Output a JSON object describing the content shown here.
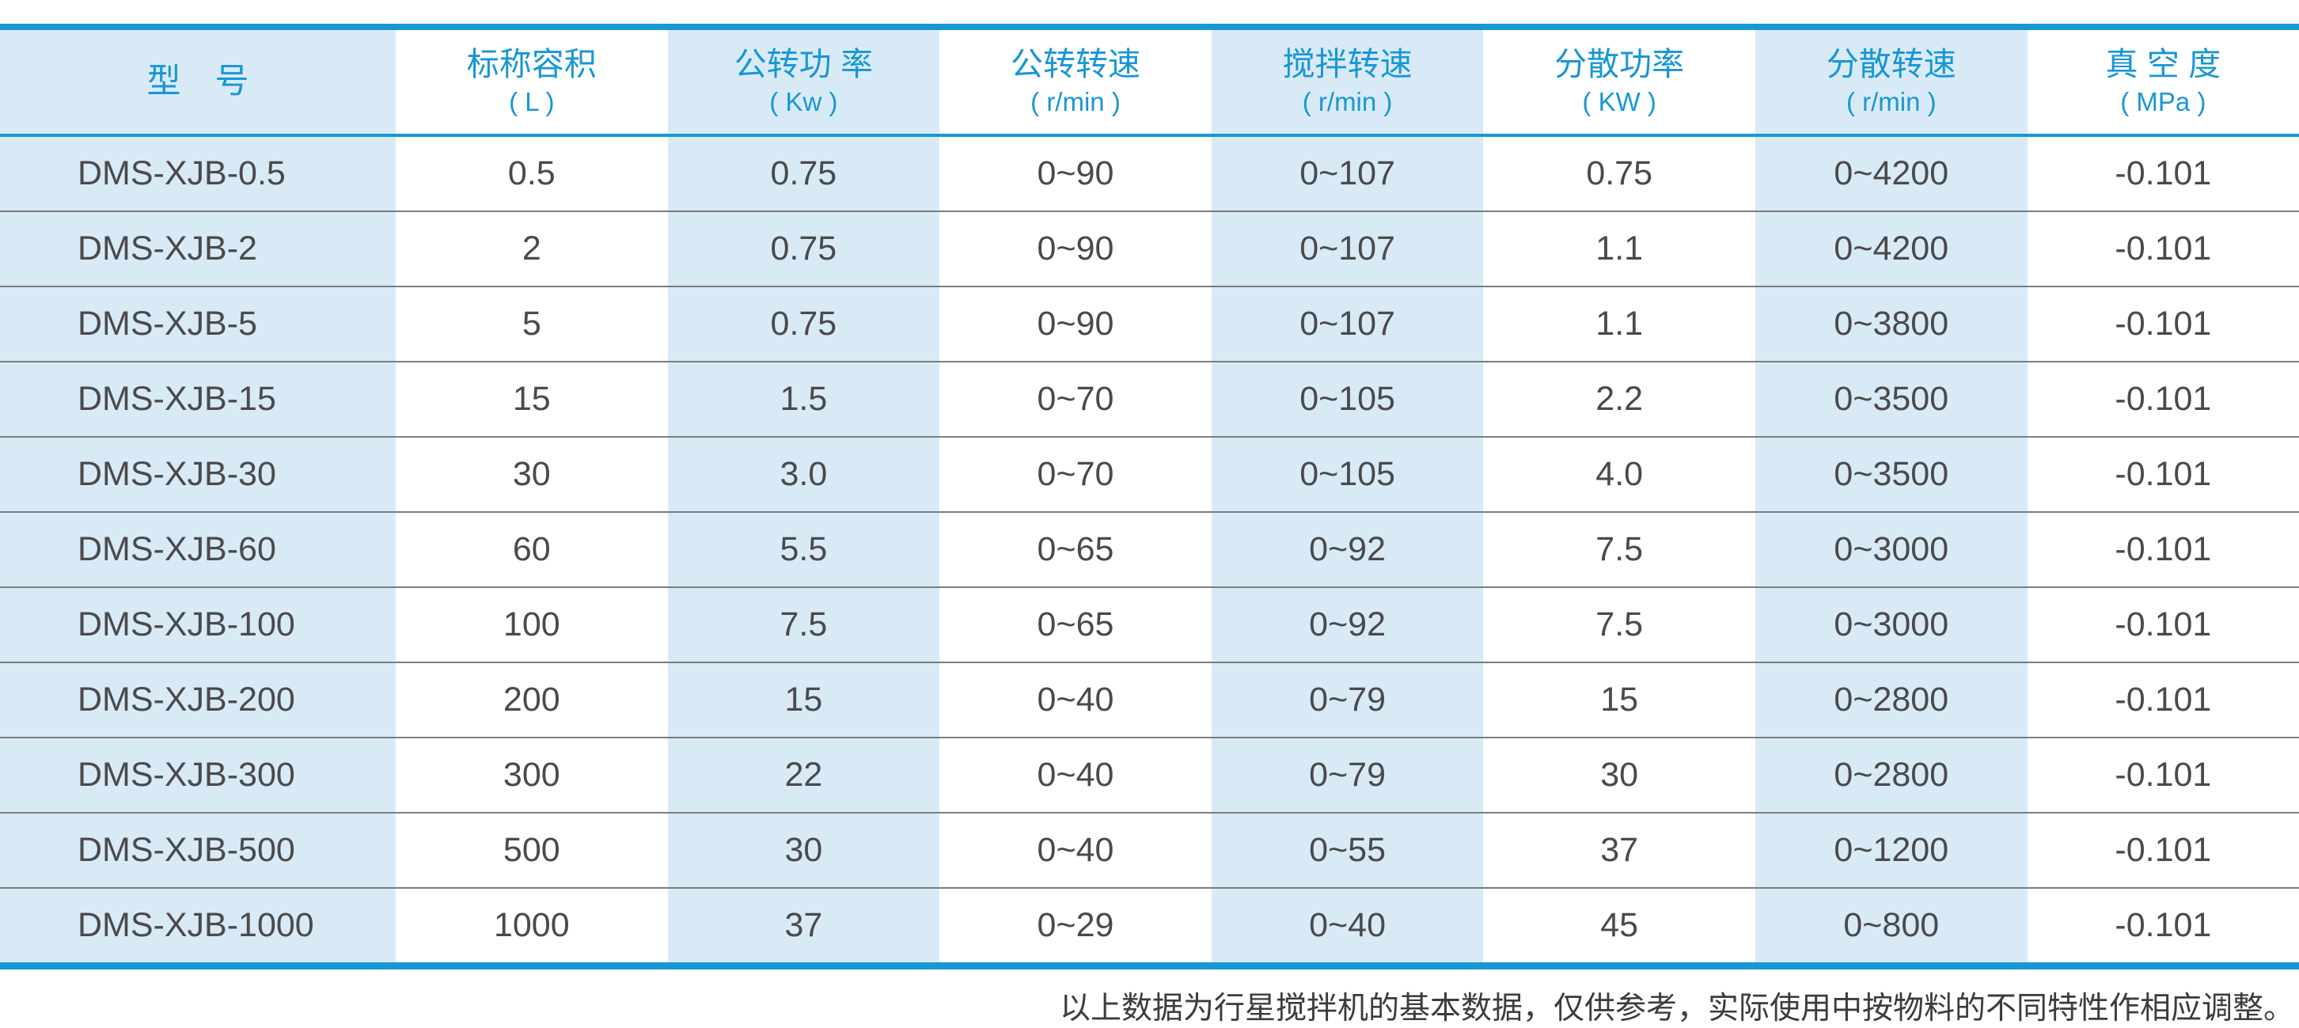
{
  "colors": {
    "accent": "#1897d5",
    "light_blue": "#d9eaf7",
    "body_text": "#4a4a4c",
    "row_separator": "#7d7d7d"
  },
  "table": {
    "columns": [
      {
        "label": "型　号",
        "unit": ""
      },
      {
        "label": "标称容积",
        "unit": "( L )"
      },
      {
        "label": "公转功 率",
        "unit": "( Kw )"
      },
      {
        "label": "公转转速",
        "unit": "( r/min )"
      },
      {
        "label": "搅拌转速",
        "unit": "( r/min )"
      },
      {
        "label": "分散功率",
        "unit": "( KW )"
      },
      {
        "label": "分散转速",
        "unit": "( r/min )"
      },
      {
        "label": "真 空 度",
        "unit": "( MPa )"
      }
    ],
    "rows": [
      [
        "DMS-XJB-0.5",
        "0.5",
        "0.75",
        "0~90",
        "0~107",
        "0.75",
        "0~4200",
        "-0.101"
      ],
      [
        "DMS-XJB-2",
        "2",
        "0.75",
        "0~90",
        "0~107",
        "1.1",
        "0~4200",
        "-0.101"
      ],
      [
        "DMS-XJB-5",
        "5",
        "0.75",
        "0~90",
        "0~107",
        "1.1",
        "0~3800",
        "-0.101"
      ],
      [
        "DMS-XJB-15",
        "15",
        "1.5",
        "0~70",
        "0~105",
        "2.2",
        "0~3500",
        "-0.101"
      ],
      [
        "DMS-XJB-30",
        "30",
        "3.0",
        "0~70",
        "0~105",
        "4.0",
        "0~3500",
        "-0.101"
      ],
      [
        "DMS-XJB-60",
        "60",
        "5.5",
        "0~65",
        "0~92",
        "7.5",
        "0~3000",
        "-0.101"
      ],
      [
        "DMS-XJB-100",
        "100",
        "7.5",
        "0~65",
        "0~92",
        "7.5",
        "0~3000",
        "-0.101"
      ],
      [
        "DMS-XJB-200",
        "200",
        "15",
        "0~40",
        "0~79",
        "15",
        "0~2800",
        "-0.101"
      ],
      [
        "DMS-XJB-300",
        "300",
        "22",
        "0~40",
        "0~79",
        "30",
        "0~2800",
        "-0.101"
      ],
      [
        "DMS-XJB-500",
        "500",
        "30",
        "0~40",
        "0~55",
        "37",
        "0~1200",
        "-0.101"
      ],
      [
        "DMS-XJB-1000",
        "1000",
        "37",
        "0~29",
        "0~40",
        "45",
        "0~800",
        "-0.101"
      ]
    ],
    "shaded_column_indexes": [
      0,
      2,
      4,
      6
    ]
  },
  "footnote": "以上数据为行星搅拌机的基本数据，仅供参考，实际使用中按物料的不同特性作相应调整。"
}
